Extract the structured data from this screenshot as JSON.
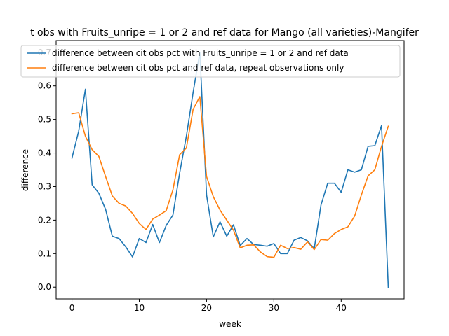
{
  "chart_data": {
    "type": "line",
    "title": "t obs with Fruits_unripe = 1 or 2 and ref data for Mango (all varieties)-Mangifer",
    "xlabel": "week",
    "ylabel": "difference",
    "xlim": [
      -2.35,
      49.35
    ],
    "ylim": [
      -0.035,
      0.735
    ],
    "xticks": [
      0,
      10,
      20,
      30,
      40
    ],
    "yticks": [
      0.0,
      0.1,
      0.2,
      0.3,
      0.4,
      0.5,
      0.6,
      0.7
    ],
    "ytick_labels": [
      "0.0",
      "0.1",
      "0.2",
      "0.3",
      "0.4",
      "0.5",
      "0.6",
      "0.7"
    ],
    "legend_position": "top-right",
    "grid": false,
    "x": [
      0,
      1,
      2,
      3,
      4,
      5,
      6,
      7,
      8,
      9,
      10,
      11,
      12,
      13,
      14,
      15,
      16,
      17,
      18,
      19,
      20,
      21,
      22,
      23,
      24,
      25,
      26,
      27,
      28,
      29,
      30,
      31,
      32,
      33,
      34,
      35,
      36,
      37,
      38,
      39,
      40,
      41,
      42,
      43,
      44,
      45,
      46,
      47
    ],
    "series": [
      {
        "name": "difference between cit obs pct with Fruits_unripe = 1 or 2 and ref data",
        "color": "#1f77b4",
        "values": [
          0.385,
          0.465,
          0.59,
          0.305,
          0.28,
          0.232,
          0.152,
          0.145,
          0.12,
          0.09,
          0.145,
          0.133,
          0.187,
          0.133,
          0.184,
          0.215,
          0.34,
          0.45,
          0.58,
          0.7,
          0.275,
          0.15,
          0.195,
          0.152,
          0.186,
          0.124,
          0.145,
          0.127,
          0.125,
          0.122,
          0.13,
          0.1,
          0.1,
          0.14,
          0.148,
          0.138,
          0.115,
          0.245,
          0.31,
          0.31,
          0.283,
          0.35,
          0.343,
          0.35,
          0.42,
          0.422,
          0.482,
          0.0
        ]
      },
      {
        "name": "difference between cit obs pct and ref data, repeat observations only",
        "color": "#ff7f0e",
        "values": [
          0.517,
          0.52,
          0.45,
          0.41,
          0.39,
          0.33,
          0.272,
          0.25,
          0.242,
          0.22,
          0.19,
          0.172,
          0.203,
          0.215,
          0.228,
          0.29,
          0.395,
          0.415,
          0.53,
          0.568,
          0.33,
          0.27,
          0.23,
          0.2,
          0.17,
          0.117,
          0.125,
          0.126,
          0.105,
          0.091,
          0.089,
          0.125,
          0.115,
          0.118,
          0.113,
          0.135,
          0.112,
          0.142,
          0.14,
          0.16,
          0.172,
          0.18,
          0.212,
          0.275,
          0.332,
          0.35,
          0.42,
          0.48
        ]
      }
    ]
  }
}
